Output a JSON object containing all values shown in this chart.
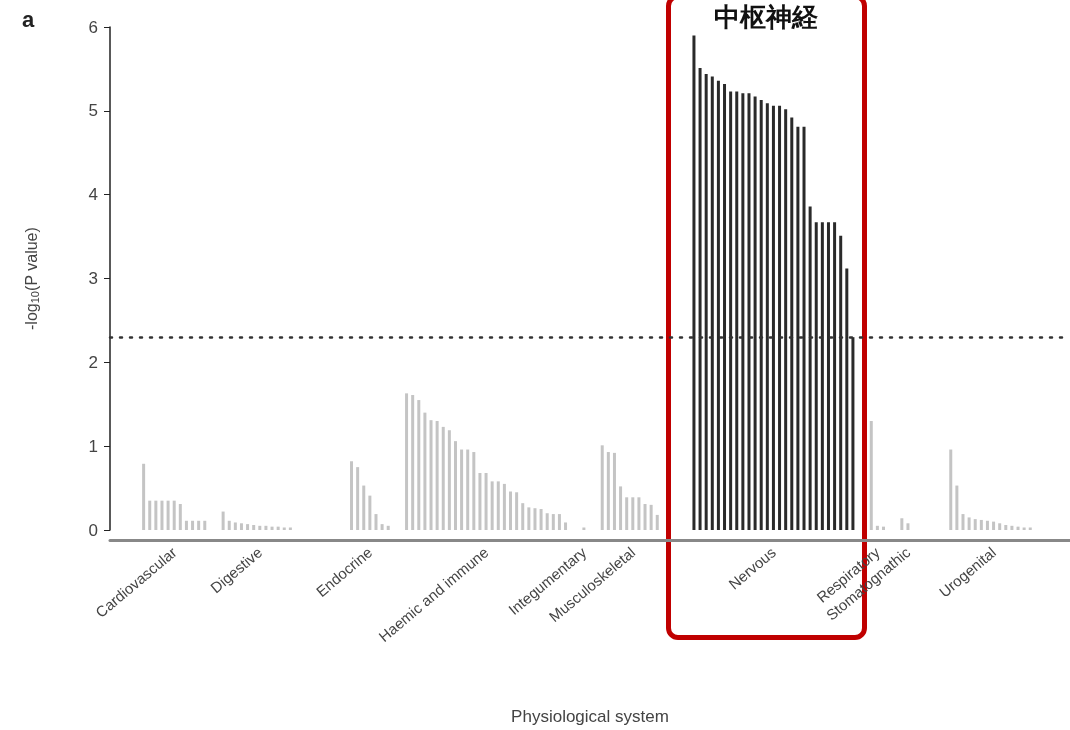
{
  "chart_data": {
    "type": "bar",
    "xlabel": "Physiological system",
    "ylabel": "-log$_{10}$(P value)",
    "categories": [
      null,
      null,
      null,
      null,
      null,
      null,
      null,
      null,
      null,
      null,
      "Cardiovascular",
      null,
      null,
      null,
      null,
      null,
      null,
      null,
      null,
      null,
      null,
      null,
      null,
      null,
      "Digestive",
      null,
      null,
      null,
      null,
      null,
      null,
      null,
      null,
      null,
      null,
      null,
      null,
      null,
      null,
      null,
      null,
      null,
      "Endocrine",
      null,
      null,
      null,
      null,
      null,
      null,
      null,
      null,
      null,
      null,
      null,
      null,
      null,
      null,
      null,
      null,
      null,
      null,
      "Haemic and immune",
      null,
      null,
      null,
      null,
      null,
      null,
      null,
      null,
      null,
      null,
      null,
      null,
      null,
      null,
      null,
      "Integumentary",
      null,
      null,
      null,
      null,
      null,
      null,
      null,
      "Musculoskeletal",
      null,
      null,
      null,
      null,
      null,
      null,
      null,
      null,
      null,
      null,
      null,
      null,
      null,
      null,
      null,
      null,
      null,
      null,
      null,
      null,
      null,
      null,
      "Nervous",
      null,
      null,
      null,
      null,
      null,
      null,
      null,
      null,
      null,
      null,
      null,
      null,
      null,
      null,
      null,
      null,
      "Respiratory",
      null,
      null,
      null,
      null,
      "Stomatognathic",
      null,
      null,
      null,
      null,
      null,
      null,
      null,
      null,
      null,
      null,
      null,
      null,
      null,
      "Urogenital",
      null,
      null,
      null,
      null,
      null,
      null,
      null,
      null,
      null,
      null,
      null,
      null
    ],
    "series": [
      {
        "color": "#c4c4c4",
        "values": [
          null,
          null,
          null,
          null,
          null,
          0.79,
          0.35,
          0.35,
          0.35,
          0.35,
          0.35,
          0.31,
          0.11,
          0.11,
          0.11,
          0.11,
          null,
          null,
          0.22,
          0.11,
          0.09,
          0.08,
          0.07,
          0.06,
          0.05,
          0.05,
          0.04,
          0.04,
          0.03,
          0.03,
          null,
          null,
          null,
          null,
          null,
          null,
          null,
          null,
          null,
          0.82,
          0.75,
          0.53,
          0.41,
          0.19,
          0.07,
          0.05,
          null,
          null,
          1.63,
          1.61,
          1.55,
          1.4,
          1.31,
          1.3,
          1.23,
          1.19,
          1.06,
          0.96,
          0.96,
          0.93,
          0.68,
          0.68,
          0.58,
          0.58,
          0.55,
          0.46,
          0.45,
          0.32,
          0.27,
          0.26,
          0.25,
          0.2,
          0.19,
          0.19,
          0.09,
          null,
          null,
          0.03,
          null,
          null,
          1.01,
          0.93,
          0.92,
          0.52,
          0.39,
          0.39,
          0.39,
          0.31,
          0.3,
          0.18,
          null,
          null,
          null,
          null,
          null,
          null,
          null,
          null,
          null,
          null,
          null,
          null,
          null,
          null,
          null,
          null,
          null,
          null,
          null,
          null,
          null,
          null,
          null,
          null,
          null,
          null,
          null,
          null,
          null,
          null,
          null,
          null,
          null,
          null,
          1.3,
          0.05,
          0.04,
          null,
          null,
          0.14,
          0.08,
          null,
          null,
          null,
          null,
          null,
          null,
          0.96,
          0.53,
          0.19,
          0.15,
          0.13,
          0.12,
          0.11,
          0.1,
          0.08,
          0.06,
          0.05,
          0.04,
          0.03,
          0.03,
          null,
          null,
          null,
          null,
          null,
          null
        ]
      },
      {
        "color": "#2a2a2a",
        "values": [
          null,
          null,
          null,
          null,
          null,
          null,
          null,
          null,
          null,
          null,
          null,
          null,
          null,
          null,
          null,
          null,
          null,
          null,
          null,
          null,
          null,
          null,
          null,
          null,
          null,
          null,
          null,
          null,
          null,
          null,
          null,
          null,
          null,
          null,
          null,
          null,
          null,
          null,
          null,
          null,
          null,
          null,
          null,
          null,
          null,
          null,
          null,
          null,
          null,
          null,
          null,
          null,
          null,
          null,
          null,
          null,
          null,
          null,
          null,
          null,
          null,
          null,
          null,
          null,
          null,
          null,
          null,
          null,
          null,
          null,
          null,
          null,
          null,
          null,
          null,
          null,
          null,
          null,
          null,
          null,
          null,
          null,
          null,
          null,
          null,
          null,
          null,
          null,
          null,
          null,
          null,
          null,
          null,
          null,
          null,
          5.9,
          5.51,
          5.44,
          5.41,
          5.36,
          5.32,
          5.23,
          5.23,
          5.21,
          5.21,
          5.17,
          5.13,
          5.09,
          5.06,
          5.06,
          5.02,
          4.92,
          4.81,
          4.81,
          3.86,
          3.67,
          3.67,
          3.67,
          3.67,
          3.51,
          3.12,
          2.3,
          null,
          null,
          null,
          null,
          null,
          null,
          null,
          null,
          null,
          null,
          null,
          null,
          null,
          null,
          null,
          null,
          null,
          null,
          null,
          null,
          null,
          null,
          null,
          null,
          null,
          null,
          null,
          null,
          null,
          null,
          null,
          null,
          null,
          null,
          null
        ]
      }
    ],
    "ylim": [
      0,
      6
    ],
    "yticks": [
      0,
      1,
      2,
      3,
      4,
      5,
      6
    ],
    "ref_lines": [
      {
        "axis": "y",
        "value": 2.3,
        "color": "#333333",
        "line_style": "dotted"
      }
    ],
    "annotations": [
      "a",
      "中枢神経"
    ],
    "grid": false
  }
}
